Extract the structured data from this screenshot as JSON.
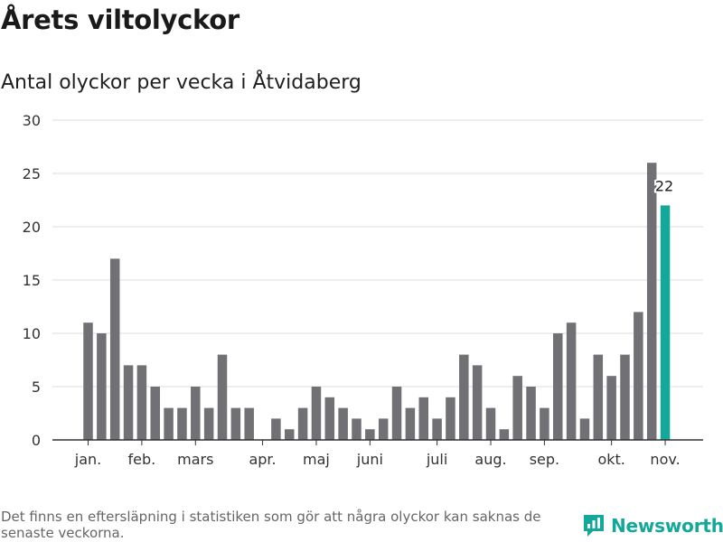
{
  "chart_data": {
    "type": "bar",
    "title": "Årets viltolyckor",
    "subtitle": "Antal olyckor per vecka i Åtvidaberg",
    "ylim": [
      0,
      30
    ],
    "yticks": [
      0,
      5,
      10,
      15,
      20,
      25,
      30
    ],
    "grid": true,
    "weeks": [
      2,
      3,
      4,
      5,
      6,
      7,
      8,
      9,
      10,
      11,
      12,
      13,
      14,
      15,
      16,
      17,
      18,
      19,
      20,
      21,
      22,
      23,
      24,
      25,
      26,
      27,
      28,
      29,
      30,
      31,
      32,
      33,
      34,
      35,
      36,
      37,
      38,
      39,
      40,
      41,
      42,
      43,
      44,
      45
    ],
    "values": [
      11,
      10,
      17,
      7,
      7,
      5,
      3,
      3,
      5,
      3,
      8,
      3,
      3,
      0,
      2,
      1,
      3,
      5,
      4,
      3,
      2,
      1,
      2,
      5,
      3,
      4,
      2,
      4,
      8,
      7,
      3,
      1,
      6,
      5,
      3,
      10,
      11,
      2,
      8,
      6,
      8,
      12,
      26,
      22
    ],
    "highlight_last": true,
    "highlight_label": "22",
    "month_labels": [
      {
        "label": "jan.",
        "week": 2
      },
      {
        "label": "feb.",
        "week": 6
      },
      {
        "label": "mars",
        "week": 10
      },
      {
        "label": "apr.",
        "week": 15
      },
      {
        "label": "maj",
        "week": 19
      },
      {
        "label": "juni",
        "week": 23
      },
      {
        "label": "juli",
        "week": 28
      },
      {
        "label": "aug.",
        "week": 32
      },
      {
        "label": "sep.",
        "week": 36
      },
      {
        "label": "okt.",
        "week": 41
      },
      {
        "label": "nov.",
        "week": 45
      }
    ],
    "colors": {
      "bar": "#707075",
      "highlight": "#13a89a",
      "grid": "#dddddd",
      "axis": "#333333"
    }
  },
  "footnote": "Det finns en eftersläpning i statistiken som gör att några olyckor kan saknas de senaste veckorna.",
  "brand": {
    "name": "Newsworthy",
    "color": "#13a89a",
    "icon": "bar-chart-icon"
  }
}
